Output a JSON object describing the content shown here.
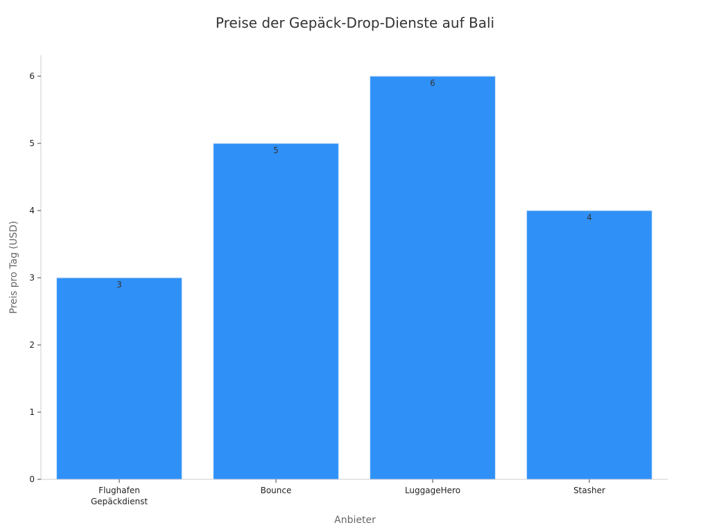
{
  "chart_data": {
    "type": "bar",
    "title": "Preise der Gepäck-Drop-Dienste auf Bali",
    "xlabel": "Anbieter",
    "ylabel": "Preis pro Tag (USD)",
    "categories": [
      [
        "Flughafen",
        "Gepäckdienst"
      ],
      [
        "Bounce"
      ],
      [
        "LuggageHero"
      ],
      [
        "Stasher"
      ]
    ],
    "values": [
      3,
      5,
      6,
      4
    ],
    "value_labels": [
      "3",
      "5",
      "6",
      "4"
    ],
    "ylim": [
      0,
      6.3
    ],
    "yticks": [
      0,
      1,
      2,
      3,
      4,
      5,
      6
    ],
    "ytick_labels": [
      "0",
      "1",
      "2",
      "3",
      "4",
      "5",
      "6"
    ],
    "bar_color": "#2f91f7",
    "bar_edge_color": "#cfe3fb",
    "grid": false,
    "legend": "none"
  }
}
